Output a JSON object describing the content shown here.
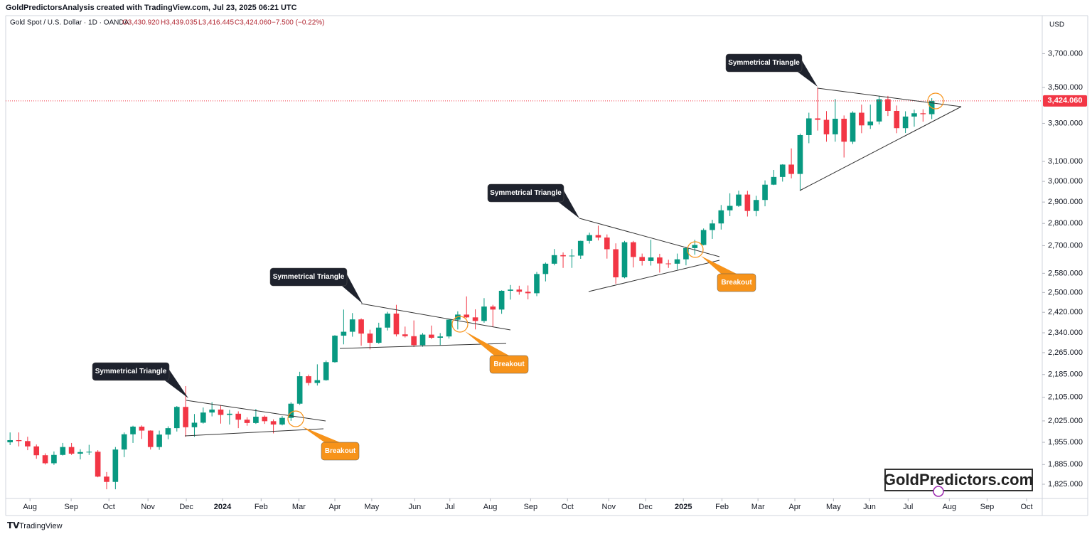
{
  "header": {
    "credit": "GoldPredictorsAnalysis created with TradingView.com, Jul 23, 2025 06:21 UTC"
  },
  "legend": {
    "symbol": "Gold Spot / U.S. Dollar · 1D · OANDA",
    "open": "O3,430.920",
    "high": "H3,439.035",
    "low": "L3,416.445",
    "close": "C3,424.060",
    "change": "−7.500 (−0.22%)"
  },
  "footer": {
    "brand": "TradingView",
    "watermark": "GoldPredictors.com"
  },
  "chart_data": {
    "type": "candlestick",
    "currency": "USD",
    "log_scale": true,
    "grid": false,
    "up_color": "#089981",
    "down_color": "#f23645",
    "annotations": [
      "Symmetrical Triangle",
      "Symmetrical Triangle",
      "Symmetrical Triangle",
      "Symmetrical Triangle",
      "Breakout",
      "Breakout",
      "Breakout"
    ],
    "last_price": {
      "value": 3424.06,
      "label": "3,424.060"
    },
    "xlim": [
      -0.5,
      117.5
    ],
    "xticks": [
      {
        "value": 2.27,
        "label": "Aug"
      },
      {
        "value": 6.96,
        "label": "Sep"
      },
      {
        "value": 11.26,
        "label": "Oct"
      },
      {
        "value": 15.71,
        "label": "Nov"
      },
      {
        "value": 20.08,
        "label": "Dec"
      },
      {
        "value": 24.2,
        "label": "2024"
      },
      {
        "value": 28.6,
        "label": "Feb"
      },
      {
        "value": 32.9,
        "label": "Mar"
      },
      {
        "value": 37.0,
        "label": "Apr"
      },
      {
        "value": 41.2,
        "label": "May"
      },
      {
        "value": 46.1,
        "label": "Jun"
      },
      {
        "value": 50.1,
        "label": "Jul"
      },
      {
        "value": 54.7,
        "label": "Aug"
      },
      {
        "value": 59.3,
        "label": "Sep"
      },
      {
        "value": 63.5,
        "label": "Oct"
      },
      {
        "value": 68.2,
        "label": "Nov"
      },
      {
        "value": 72.4,
        "label": "Dec"
      },
      {
        "value": 76.7,
        "label": "2025"
      },
      {
        "value": 81.1,
        "label": "Feb"
      },
      {
        "value": 85.2,
        "label": "Mar"
      },
      {
        "value": 89.4,
        "label": "Apr"
      },
      {
        "value": 93.8,
        "label": "May"
      },
      {
        "value": 97.9,
        "label": "Jun"
      },
      {
        "value": 102.3,
        "label": "Jul"
      },
      {
        "value": 107.0,
        "label": "Aug"
      },
      {
        "value": 111.3,
        "label": "Sep"
      },
      {
        "value": 115.8,
        "label": "Oct"
      }
    ],
    "ylim": [
      1785,
      3938
    ],
    "yticks": [
      {
        "value": 1825,
        "label": "1,825.000"
      },
      {
        "value": 1885,
        "label": "1,885.000"
      },
      {
        "value": 1955,
        "label": "1,955.000"
      },
      {
        "value": 2025,
        "label": "2,025.000"
      },
      {
        "value": 2105,
        "label": "2,105.000"
      },
      {
        "value": 2185,
        "label": "2,185.000"
      },
      {
        "value": 2265,
        "label": "2,265.000"
      },
      {
        "value": 2340,
        "label": "2,340.000"
      },
      {
        "value": 2420,
        "label": "2,420.000"
      },
      {
        "value": 2500,
        "label": "2,500.000"
      },
      {
        "value": 2580,
        "label": "2,580.000"
      },
      {
        "value": 2700,
        "label": "2,700.000"
      },
      {
        "value": 2800,
        "label": "2,800.000"
      },
      {
        "value": 2900,
        "label": "2,900.000"
      },
      {
        "value": 3000,
        "label": "3,000.000"
      },
      {
        "value": 3100,
        "label": "3,100.000"
      },
      {
        "value": 3300,
        "label": "3,300.000"
      },
      {
        "value": 3500,
        "label": "3,500.000"
      },
      {
        "value": 3700,
        "label": "3,700.000"
      }
    ],
    "open": [
      1955,
      1962,
      1959,
      1942,
      1914,
      1889,
      1915,
      1940,
      1919,
      1924,
      1925,
      1848,
      1832,
      1932,
      1981,
      2006,
      1993,
      1940,
      1980,
      2001,
      2072,
      2004,
      2019,
      2053,
      2063,
      2045,
      2049,
      2029,
      2018,
      2039,
      2024,
      2013,
      2035,
      2083,
      2179,
      2155,
      2165,
      2230,
      2329,
      2344,
      2392,
      2337,
      2302,
      2360,
      2415,
      2334,
      2327,
      2293,
      2333,
      2321,
      2326,
      2391,
      2411,
      2400,
      2386,
      2443,
      2431,
      2507,
      2512,
      2503,
      2497,
      2577,
      2621,
      2658,
      2653,
      2656,
      2721,
      2747,
      2736,
      2684,
      2563,
      2715,
      2650,
      2633,
      2648,
      2622,
      2621,
      2640,
      2689,
      2703,
      2770,
      2800,
      2861,
      2882,
      2936,
      2858,
      2910,
      2984,
      3022,
      3084,
      3037,
      3237,
      3327,
      3319,
      3241,
      3325,
      3202,
      3358,
      3289,
      3310,
      3433,
      3368,
      3274,
      3337,
      3355,
      3350
    ],
    "high": [
      1987,
      1987,
      1973,
      1948,
      1920,
      1926,
      1953,
      1953,
      1933,
      1947,
      1930,
      1862,
      1940,
      1987,
      2009,
      2010,
      1994,
      1993,
      2007,
      2075,
      2144,
      2048,
      2070,
      2088,
      2078,
      2062,
      2057,
      2037,
      2065,
      2043,
      2030,
      2041,
      2088,
      2195,
      2185,
      2222,
      2236,
      2331,
      2431,
      2417,
      2396,
      2352,
      2379,
      2422,
      2450,
      2364,
      2388,
      2339,
      2368,
      2339,
      2392,
      2424,
      2484,
      2432,
      2477,
      2450,
      2509,
      2531,
      2528,
      2529,
      2586,
      2626,
      2685,
      2670,
      2685,
      2722,
      2758,
      2790,
      2750,
      2710,
      2721,
      2721,
      2665,
      2726,
      2664,
      2638,
      2665,
      2694,
      2726,
      2777,
      2817,
      2886,
      2942,
      2955,
      2954,
      2930,
      3005,
      3057,
      3086,
      3167,
      3245,
      3358,
      3500,
      3367,
      3435,
      3343,
      3366,
      3403,
      3403,
      3452,
      3452,
      3398,
      3366,
      3375,
      3377,
      3439
    ],
    "low": [
      1946,
      1942,
      1930,
      1903,
      1885,
      1884,
      1913,
      1915,
      1901,
      1915,
      1846,
      1810,
      1810,
      1908,
      1953,
      1966,
      1932,
      1931,
      1965,
      1990,
      1973,
      1973,
      2016,
      2040,
      2016,
      2013,
      2001,
      2009,
      2015,
      2015,
      1984,
      2010,
      2025,
      2079,
      2146,
      2146,
      2163,
      2228,
      2296,
      2325,
      2291,
      2277,
      2298,
      2349,
      2326,
      2322,
      2286,
      2287,
      2316,
      2293,
      2318,
      2353,
      2397,
      2353,
      2379,
      2364,
      2414,
      2471,
      2491,
      2472,
      2485,
      2546,
      2614,
      2603,
      2603,
      2642,
      2709,
      2723,
      2643,
      2536,
      2559,
      2605,
      2613,
      2613,
      2583,
      2603,
      2596,
      2614,
      2660,
      2701,
      2730,
      2772,
      2834,
      2877,
      2832,
      2833,
      2880,
      2982,
      2999,
      3015,
      2957,
      3194,
      3261,
      3202,
      3202,
      3120,
      3190,
      3247,
      3270,
      3294,
      3340,
      3247,
      3248,
      3282,
      3309,
      3323
    ],
    "close": [
      1962,
      1959,
      1942,
      1914,
      1889,
      1915,
      1940,
      1919,
      1924,
      1925,
      1848,
      1832,
      1932,
      1981,
      2006,
      1993,
      1940,
      1980,
      2001,
      2072,
      2004,
      2019,
      2053,
      2063,
      2045,
      2049,
      2029,
      2018,
      2039,
      2024,
      2013,
      2035,
      2083,
      2179,
      2155,
      2165,
      2230,
      2329,
      2344,
      2392,
      2337,
      2302,
      2360,
      2415,
      2334,
      2327,
      2293,
      2333,
      2321,
      2326,
      2391,
      2411,
      2400,
      2386,
      2443,
      2431,
      2507,
      2512,
      2503,
      2497,
      2577,
      2621,
      2658,
      2653,
      2656,
      2721,
      2747,
      2736,
      2684,
      2563,
      2715,
      2650,
      2633,
      2648,
      2622,
      2621,
      2640,
      2689,
      2703,
      2770,
      2800,
      2861,
      2882,
      2936,
      2858,
      2910,
      2984,
      3022,
      3084,
      3037,
      3237,
      3327,
      3319,
      3241,
      3325,
      3202,
      3358,
      3289,
      3310,
      3433,
      3368,
      3274,
      3337,
      3355,
      3350,
      3424
    ]
  }
}
